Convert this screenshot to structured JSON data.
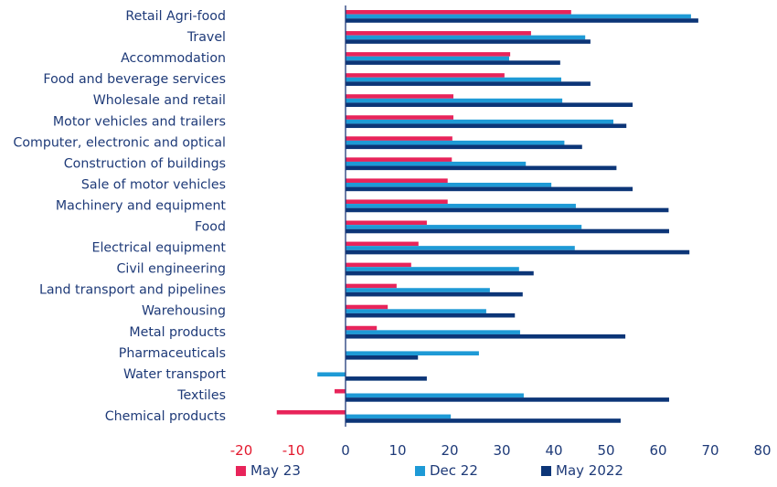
{
  "chart_data": {
    "type": "bar",
    "orientation": "horizontal",
    "title": "",
    "xlabel": "",
    "ylabel": "",
    "xlim": [
      -20,
      80
    ],
    "x_ticks": [
      -20,
      -10,
      0,
      10,
      20,
      30,
      40,
      50,
      60,
      70,
      80
    ],
    "x_tick_labels": [
      "-20",
      "-10",
      "0",
      "10",
      "20",
      "30",
      "40",
      "50",
      "60",
      "70",
      "80"
    ],
    "negative_tick_color": "#e3182d",
    "grid": false,
    "legend_position": "bottom",
    "categories": [
      "Retail Agri-food",
      "Travel",
      "Accommodation",
      "Food and beverage services",
      "Wholesale and retail",
      "Motor vehicles and trailers",
      "Computer, electronic and optical",
      "Construction of buildings",
      "Sale of motor vehicles",
      "Machinery and equipment",
      "Food",
      "Electrical equipment",
      "Civil engineering",
      "Land transport and pipelines",
      "Warehousing",
      "Metal products",
      "Pharmaceuticals",
      "Water transport",
      "Textiles",
      "Chemical products"
    ],
    "series": [
      {
        "name": "May 23",
        "color": "#e8245a",
        "values": [
          43.3,
          35.6,
          31.6,
          30.5,
          20.7,
          20.7,
          20.5,
          20.4,
          19.6,
          19.6,
          15.6,
          14.0,
          12.6,
          9.8,
          8.1,
          6.0,
          0.0,
          0.0,
          -2.1,
          -13.2
        ]
      },
      {
        "name": "Dec 22",
        "color": "#1e9ad6",
        "values": [
          66.3,
          46.0,
          31.4,
          41.4,
          41.6,
          51.4,
          42.0,
          34.6,
          39.5,
          44.2,
          45.3,
          44.0,
          33.3,
          27.7,
          27.0,
          33.5,
          25.6,
          -5.4,
          34.2,
          20.2
        ]
      },
      {
        "name": "May 2022",
        "color": "#0c3577",
        "values": [
          67.7,
          47.0,
          41.2,
          47.0,
          55.1,
          53.9,
          45.4,
          52.0,
          55.1,
          62.0,
          62.1,
          66.0,
          36.1,
          34.0,
          32.5,
          53.7,
          13.9,
          15.6,
          62.1,
          52.8
        ]
      }
    ]
  },
  "legend": {
    "items": [
      {
        "label": "May 23",
        "color": "#e8245a"
      },
      {
        "label": "Dec 22",
        "color": "#1e9ad6"
      },
      {
        "label": "May 2022",
        "color": "#0c3577"
      }
    ]
  },
  "axis_color": "#1e3a78"
}
